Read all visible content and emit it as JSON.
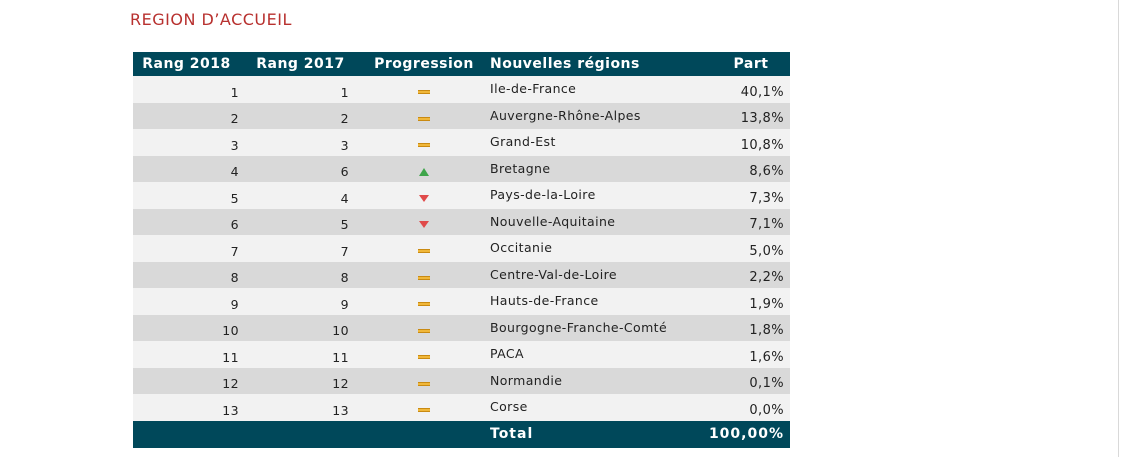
{
  "title": "REGION D’ACCUEIL",
  "columns": {
    "rank_2018": "Rang 2018",
    "rank_2017": "Rang 2017",
    "progression": "Progression",
    "region": "Nouvelles régions",
    "part": "Part"
  },
  "rows": [
    {
      "rank_2018": "1",
      "rank_2017": "1",
      "trend": "stable",
      "region": "Ile-de-France",
      "part": "40,1%"
    },
    {
      "rank_2018": "2",
      "rank_2017": "2",
      "trend": "stable",
      "region": "Auvergne-Rhône-Alpes",
      "part": "13,8%"
    },
    {
      "rank_2018": "3",
      "rank_2017": "3",
      "trend": "stable",
      "region": "Grand-Est",
      "part": "10,8%"
    },
    {
      "rank_2018": "4",
      "rank_2017": "6",
      "trend": "up",
      "region": "Bretagne",
      "part": "8,6%"
    },
    {
      "rank_2018": "5",
      "rank_2017": "4",
      "trend": "down",
      "region": "Pays-de-la-Loire",
      "part": "7,3%"
    },
    {
      "rank_2018": "6",
      "rank_2017": "5",
      "trend": "down",
      "region": "Nouvelle-Aquitaine",
      "part": "7,1%"
    },
    {
      "rank_2018": "7",
      "rank_2017": "7",
      "trend": "stable",
      "region": "Occitanie",
      "part": "5,0%"
    },
    {
      "rank_2018": "8",
      "rank_2017": "8",
      "trend": "stable",
      "region": "Centre-Val-de-Loire",
      "part": "2,2%"
    },
    {
      "rank_2018": "9",
      "rank_2017": "9",
      "trend": "stable",
      "region": "Hauts-de-France",
      "part": "1,9%"
    },
    {
      "rank_2018": "10",
      "rank_2017": "10",
      "trend": "stable",
      "region": "Bourgogne-Franche-Comté",
      "part": "1,8%"
    },
    {
      "rank_2018": "11",
      "rank_2017": "11",
      "trend": "stable",
      "region": "PACA",
      "part": "1,6%"
    },
    {
      "rank_2018": "12",
      "rank_2017": "12",
      "trend": "stable",
      "region": "Normandie",
      "part": "0,1%"
    },
    {
      "rank_2018": "13",
      "rank_2017": "13",
      "trend": "stable",
      "region": "Corse",
      "part": "0,0%"
    }
  ],
  "footer": {
    "label": "Total",
    "value": "100,00%"
  },
  "trend_icons": {
    "stable": "dash-icon",
    "up": "arrow-up-icon",
    "down": "arrow-down-icon"
  },
  "colors": {
    "header_bg": "#00485a",
    "title": "#b8312f",
    "stable": "#f0b73a",
    "up": "#3ea54a",
    "down": "#e04a4a"
  }
}
